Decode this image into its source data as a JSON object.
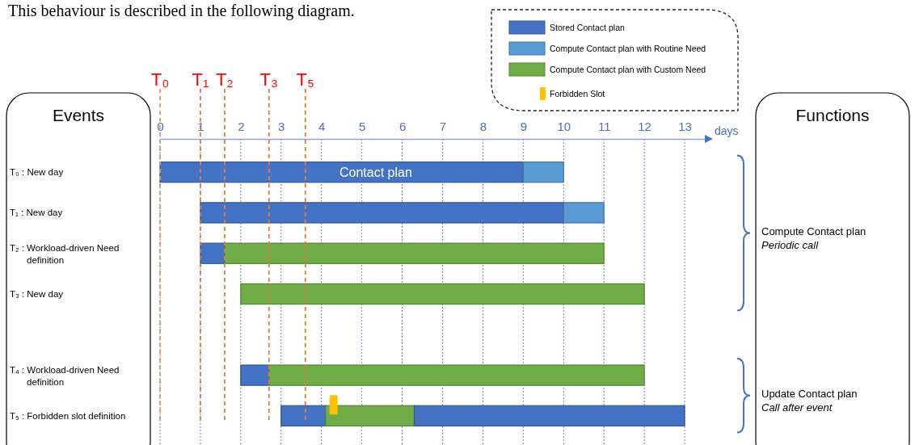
{
  "chart_data": {
    "type": "bar",
    "orientation": "horizontal",
    "title": "This behaviour is described in the following diagram.",
    "xlabel": "days",
    "categories": [
      "T₀ : New day",
      "T₁ : New day",
      "T₂ : Workload-driven Need definition",
      "T₃ : New day",
      null,
      "T₄ : Workload-driven Need definition",
      "T₅ : Forbidden slot definition"
    ],
    "series": [
      {
        "name": "Stored Contact plan",
        "color": "#4472c4",
        "base": [
          0,
          1,
          1,
          null,
          null,
          2,
          3
        ],
        "values": [
          9,
          9,
          0.6,
          null,
          null,
          0.7,
          1.1
        ]
      },
      {
        "name": "Compute Contact plan with Routine Need",
        "color": "#5b9bd5",
        "base": [
          9,
          10,
          null,
          null,
          null,
          null,
          null
        ],
        "values": [
          1,
          1,
          null,
          null,
          null,
          null,
          null
        ]
      },
      {
        "name": "Compute Contact plan with Custom Need",
        "color": "#70ad47",
        "base": [
          null,
          null,
          1.6,
          2,
          null,
          2.7,
          4.1
        ],
        "values": [
          null,
          null,
          9.4,
          10,
          null,
          9.3,
          2.2
        ]
      },
      {
        "color": "#4472c4",
        "base": [
          null,
          null,
          null,
          null,
          null,
          null,
          6.3
        ],
        "values": [
          null,
          null,
          null,
          null,
          null,
          null,
          6.7
        ]
      },
      {
        "name": "Forbidden Slot",
        "type": "scatter",
        "color": "#ffc000",
        "marker": "square",
        "values": [
          null,
          null,
          null,
          null,
          null,
          null,
          4.3
        ]
      }
    ],
    "xlim": [
      0,
      13.5
    ],
    "xticks": [
      0,
      1,
      2,
      3,
      4,
      5,
      6,
      7,
      8,
      9,
      10,
      11,
      12,
      13
    ],
    "grid": "x",
    "legend": "top right",
    "ref_lines": [
      {
        "axis": "x",
        "value": 0,
        "label": "T₀",
        "color": "#d99a6c",
        "line_style": "dashed"
      },
      {
        "axis": "x",
        "value": 1,
        "label": "T₁",
        "color": "#e07b39",
        "line_style": "dashed"
      },
      {
        "axis": "x",
        "value": 1.6,
        "label": "T₂",
        "color": "#e07b39",
        "line_style": "dashed"
      },
      {
        "axis": "x",
        "value": 2.7,
        "label": "T₃",
        "color": "#e07b39",
        "line_style": "dashed"
      },
      {
        "axis": "x",
        "value": 3.6,
        "label": "T₅",
        "color": "#e07b39",
        "line_style": "dashed"
      }
    ],
    "annotations": [
      "Contact plan",
      "Events",
      "Functions",
      "Compute Contact plan",
      "Periodic call",
      "Update Contact plan",
      "Call after event"
    ]
  }
}
